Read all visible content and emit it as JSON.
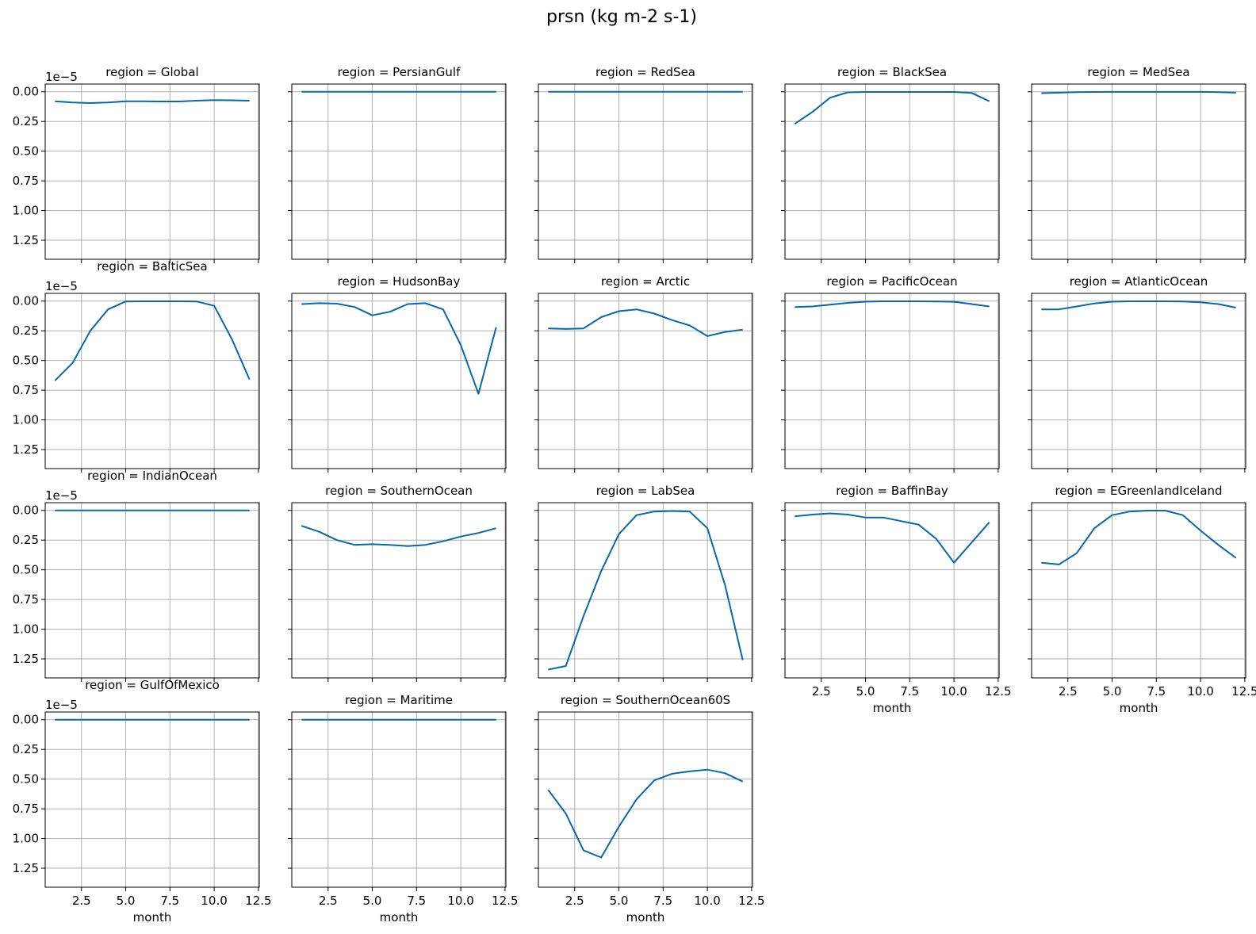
{
  "suptitle": "prsn (kg m-2 s-1)",
  "chart_data": {
    "type": "line",
    "x": [
      1,
      2,
      3,
      4,
      5,
      6,
      7,
      8,
      9,
      10,
      11,
      12
    ],
    "xlabel": "month",
    "xticks": [
      "2.5",
      "5.0",
      "7.5",
      "10.0",
      "12.5"
    ],
    "yticks": [
      "0.00",
      "0.25",
      "0.50",
      "0.75",
      "1.00",
      "1.25"
    ],
    "yoffset_label": "1e−5",
    "ylim": [
      1.41,
      -0.065
    ],
    "xlim": [
      0.45,
      12.55
    ],
    "grid": true,
    "line_color": "#0868ac",
    "panels": [
      {
        "title": "region = Global",
        "values": [
          0.08,
          0.09,
          0.095,
          0.09,
          0.08,
          0.08,
          0.082,
          0.082,
          0.075,
          0.07,
          0.072,
          0.075
        ]
      },
      {
        "title": "region = PersianGulf",
        "values": [
          0,
          0,
          0,
          0,
          0,
          0,
          0,
          0,
          0,
          0,
          0,
          0
        ]
      },
      {
        "title": "region = RedSea",
        "values": [
          0,
          0,
          0,
          0,
          0,
          0,
          0,
          0,
          0,
          0,
          0,
          0
        ]
      },
      {
        "title": "region = BlackSea",
        "values": [
          0.27,
          0.17,
          0.05,
          0.005,
          0.002,
          0.002,
          0.002,
          0.002,
          0.002,
          0.002,
          0.01,
          0.08
        ]
      },
      {
        "title": "region = MedSea",
        "values": [
          0.012,
          0.008,
          0.004,
          0.002,
          0.001,
          0.001,
          0.001,
          0.001,
          0.001,
          0.001,
          0.003,
          0.008
        ]
      },
      {
        "title": "region = BalticSea",
        "values": [
          0.67,
          0.52,
          0.25,
          0.07,
          0.003,
          0.002,
          0.002,
          0.002,
          0.003,
          0.04,
          0.32,
          0.66
        ]
      },
      {
        "title": "region = HudsonBay",
        "values": [
          0.025,
          0.018,
          0.022,
          0.05,
          0.12,
          0.09,
          0.025,
          0.018,
          0.07,
          0.37,
          0.78,
          0.22
        ]
      },
      {
        "title": "region = Arctic",
        "values": [
          0.23,
          0.235,
          0.23,
          0.135,
          0.085,
          0.07,
          0.105,
          0.16,
          0.205,
          0.295,
          0.26,
          0.24
        ]
      },
      {
        "title": "region = PacificOcean",
        "values": [
          0.05,
          0.045,
          0.03,
          0.015,
          0.005,
          0.002,
          0.002,
          0.002,
          0.003,
          0.006,
          0.025,
          0.045
        ]
      },
      {
        "title": "region = AtlanticOcean",
        "values": [
          0.07,
          0.07,
          0.045,
          0.02,
          0.005,
          0.002,
          0.002,
          0.002,
          0.003,
          0.01,
          0.025,
          0.055
        ]
      },
      {
        "title": "region = IndianOcean",
        "values": [
          0,
          0,
          0,
          0,
          0,
          0,
          0,
          0,
          0,
          0,
          0,
          0
        ]
      },
      {
        "title": "region = SouthernOcean",
        "values": [
          0.13,
          0.18,
          0.25,
          0.29,
          0.285,
          0.29,
          0.3,
          0.29,
          0.26,
          0.22,
          0.19,
          0.15
        ]
      },
      {
        "title": "region = LabSea",
        "values": [
          1.34,
          1.31,
          0.89,
          0.51,
          0.2,
          0.04,
          0.01,
          0.005,
          0.01,
          0.15,
          0.63,
          1.26
        ]
      },
      {
        "title": "region = BaffinBay",
        "values": [
          0.05,
          0.035,
          0.025,
          0.035,
          0.06,
          0.06,
          0.09,
          0.12,
          0.24,
          0.44,
          0.27,
          0.1
        ]
      },
      {
        "title": "region = EGreenlandIceland",
        "values": [
          0.44,
          0.455,
          0.36,
          0.15,
          0.04,
          0.01,
          0.002,
          0.002,
          0.04,
          0.17,
          0.29,
          0.4
        ]
      },
      {
        "title": "region = GulfOfMexico",
        "values": [
          0,
          0,
          0,
          0,
          0,
          0,
          0,
          0,
          0,
          0,
          0,
          0
        ]
      },
      {
        "title": "region = Maritime",
        "values": [
          0,
          0,
          0,
          0,
          0,
          0,
          0,
          0,
          0,
          0,
          0,
          0
        ]
      },
      {
        "title": "region = SouthernOcean60S",
        "values": [
          0.59,
          0.79,
          1.1,
          1.16,
          0.9,
          0.67,
          0.51,
          0.455,
          0.435,
          0.42,
          0.45,
          0.52
        ]
      }
    ]
  }
}
